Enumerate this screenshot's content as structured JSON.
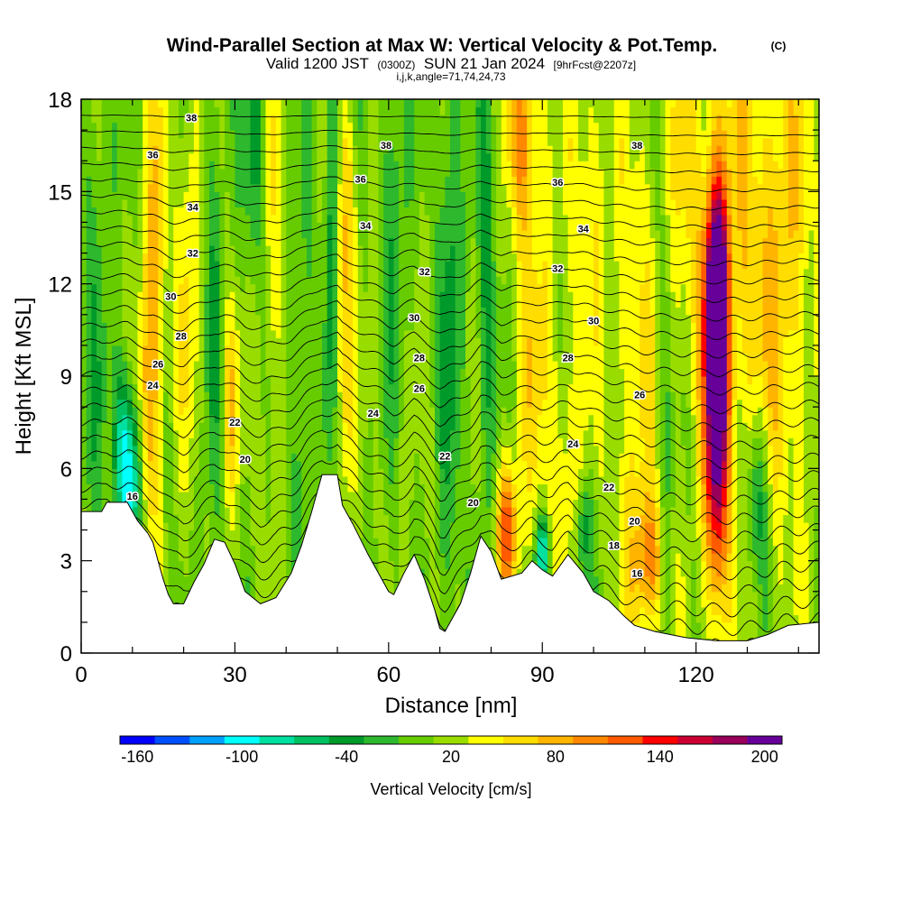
{
  "chart_data": {
    "type": "heatmap",
    "title": "Wind-Parallel Section at Max W: Vertical Velocity & Pot.Temp.",
    "title_mark": "(C)",
    "subtitle": {
      "part1": "Valid 1200 JST",
      "part2": "(0300Z)",
      "part3": "SUN 21 Jan 2024",
      "part4": "[9hrFcst@2207z]"
    },
    "params_line": "i,j,k,angle=71,74,24,73",
    "xlabel": "Distance [nm]",
    "ylabel": "Height [Kft MSL]",
    "xlim": [
      0,
      144
    ],
    "ylim": [
      0,
      18
    ],
    "xticks": [
      "0",
      "30",
      "60",
      "90",
      "120"
    ],
    "yticks": [
      "0",
      "3",
      "6",
      "9",
      "12",
      "15",
      "18"
    ],
    "colorbar": {
      "label": "Vertical Velocity [cm/s]",
      "ticks": [
        "-160",
        "-100",
        "-40",
        "20",
        "80",
        "140",
        "200"
      ],
      "colors": [
        "#0000ff",
        "#0050ff",
        "#00a0ff",
        "#00ffff",
        "#00e0a0",
        "#00c060",
        "#009a2a",
        "#2eb82e",
        "#66cc00",
        "#99dd00",
        "#ffff00",
        "#ffdd00",
        "#ffb400",
        "#ff8800",
        "#ff5a00",
        "#ff0000",
        "#cc0033",
        "#99005a",
        "#660099"
      ]
    },
    "terrain": [
      [
        0,
        4.6
      ],
      [
        4,
        4.6
      ],
      [
        5,
        4.9
      ],
      [
        9,
        4.9
      ],
      [
        11,
        4.3
      ],
      [
        13,
        3.9
      ],
      [
        14,
        3.6
      ],
      [
        15,
        3.0
      ],
      [
        16,
        2.4
      ],
      [
        17,
        1.9
      ],
      [
        18,
        1.6
      ],
      [
        20,
        1.6
      ],
      [
        22,
        2.3
      ],
      [
        24,
        2.9
      ],
      [
        26,
        3.7
      ],
      [
        28,
        3.6
      ],
      [
        30,
        2.9
      ],
      [
        32,
        2.0
      ],
      [
        35,
        1.6
      ],
      [
        38,
        1.8
      ],
      [
        41,
        2.6
      ],
      [
        43,
        3.5
      ],
      [
        45,
        4.6
      ],
      [
        47,
        5.8
      ],
      [
        50,
        5.8
      ],
      [
        51,
        4.8
      ],
      [
        53,
        4.2
      ],
      [
        56,
        3.2
      ],
      [
        58,
        2.6
      ],
      [
        60,
        2.0
      ],
      [
        61,
        1.9
      ],
      [
        63,
        2.6
      ],
      [
        65,
        3.2
      ],
      [
        67,
        2.4
      ],
      [
        69,
        1.4
      ],
      [
        70,
        0.8
      ],
      [
        71,
        0.7
      ],
      [
        72,
        1.0
      ],
      [
        74,
        1.6
      ],
      [
        76,
        2.6
      ],
      [
        78,
        3.8
      ],
      [
        80,
        3.3
      ],
      [
        82,
        2.4
      ],
      [
        86,
        2.6
      ],
      [
        88,
        3.0
      ],
      [
        90,
        2.7
      ],
      [
        92,
        2.5
      ],
      [
        95,
        3.2
      ],
      [
        98,
        2.6
      ],
      [
        100,
        2.0
      ],
      [
        103,
        1.7
      ],
      [
        106,
        1.2
      ],
      [
        108,
        0.9
      ],
      [
        112,
        0.7
      ],
      [
        118,
        0.5
      ],
      [
        124,
        0.4
      ],
      [
        130,
        0.4
      ],
      [
        134,
        0.6
      ],
      [
        138,
        0.9
      ],
      [
        144,
        1.0
      ]
    ],
    "w_features": [
      {
        "x": 124,
        "z": 8.5,
        "sx": 1.6,
        "sz": 4.5,
        "w": 210
      },
      {
        "x": 124,
        "z": 11.5,
        "sx": 1.4,
        "sz": 2.0,
        "w": 120
      },
      {
        "x": 128,
        "z": 12.5,
        "sx": 6.0,
        "sz": 6.0,
        "w": 55
      },
      {
        "x": 138,
        "z": 13.0,
        "sx": 4.0,
        "sz": 7.0,
        "w": 45
      },
      {
        "x": 13,
        "z": 8.0,
        "sx": 1.5,
        "sz": 3.5,
        "w": 90
      },
      {
        "x": 15,
        "z": 14.5,
        "sx": 1.5,
        "sz": 4.0,
        "w": 55
      },
      {
        "x": 21,
        "z": 13.0,
        "sx": 1.6,
        "sz": 5.0,
        "w": 45
      },
      {
        "x": 29,
        "z": 8.0,
        "sx": 1.2,
        "sz": 2.5,
        "w": 60
      },
      {
        "x": 37,
        "z": 12.0,
        "sx": 2.0,
        "sz": 5.0,
        "w": 35
      },
      {
        "x": 51,
        "z": 9.5,
        "sx": 1.5,
        "sz": 3.5,
        "w": 60
      },
      {
        "x": 52,
        "z": 15.0,
        "sx": 1.5,
        "sz": 2.5,
        "w": 40
      },
      {
        "x": 83,
        "z": 4.0,
        "sx": 1.5,
        "sz": 1.5,
        "w": 110
      },
      {
        "x": 88,
        "z": 11.0,
        "sx": 3.0,
        "sz": 6.0,
        "w": 45
      },
      {
        "x": 86,
        "z": 17.0,
        "sx": 2.0,
        "sz": 2.0,
        "w": 70
      },
      {
        "x": 95,
        "z": 6.0,
        "sx": 2.5,
        "sz": 3.0,
        "w": 40
      },
      {
        "x": 108,
        "z": 8.0,
        "sx": 3.0,
        "sz": 7.0,
        "w": 45
      },
      {
        "x": 111,
        "z": 3.0,
        "sx": 2.0,
        "sz": 1.5,
        "w": 80
      },
      {
        "x": 99,
        "z": 15.0,
        "sx": 3.0,
        "sz": 4.0,
        "w": 40
      },
      {
        "x": 117,
        "z": 15.0,
        "sx": 3.0,
        "sz": 5.0,
        "w": 35
      },
      {
        "x": 10,
        "z": 5.5,
        "sx": 1.5,
        "sz": 2.0,
        "w": -110
      },
      {
        "x": 8,
        "z": 7.0,
        "sx": 1.2,
        "sz": 2.0,
        "w": -70
      },
      {
        "x": 90,
        "z": 3.3,
        "sx": 1.0,
        "sz": 0.8,
        "w": -110
      },
      {
        "x": 49,
        "z": 13.0,
        "sx": 1.0,
        "sz": 6.0,
        "w": -60
      },
      {
        "x": 34,
        "z": 16.0,
        "sx": 1.5,
        "sz": 3.0,
        "w": -50
      },
      {
        "x": 72,
        "z": 12.0,
        "sx": 1.5,
        "sz": 8.0,
        "w": -45
      },
      {
        "x": 79,
        "z": 12.0,
        "sx": 1.3,
        "sz": 6.0,
        "w": -45
      },
      {
        "x": 98,
        "z": 4.0,
        "sx": 1.2,
        "sz": 1.2,
        "w": -60
      },
      {
        "x": 132,
        "z": 5.0,
        "sx": 1.5,
        "sz": 2.0,
        "w": -70
      },
      {
        "x": 43,
        "z": 9.0,
        "sx": 1.5,
        "sz": 5.0,
        "w": -35
      },
      {
        "x": 61,
        "z": 15.0,
        "sx": 1.5,
        "sz": 4.0,
        "w": -40
      },
      {
        "x": 26,
        "z": 12.0,
        "sx": 1.5,
        "sz": 6.0,
        "w": -30
      },
      {
        "x": 114,
        "z": 9.0,
        "sx": 1.2,
        "sz": 5.0,
        "w": -35
      },
      {
        "x": 3,
        "z": 12.0,
        "sx": 2.0,
        "sz": 8.0,
        "w": -25
      }
    ],
    "theta_contour_labels": [
      {
        "text": "38",
        "x": 21.5,
        "z": 17.4
      },
      {
        "text": "38",
        "x": 59.5,
        "z": 16.5
      },
      {
        "text": "38",
        "x": 108.5,
        "z": 16.5
      },
      {
        "text": "36",
        "x": 14,
        "z": 16.2
      },
      {
        "text": "36",
        "x": 54.5,
        "z": 15.4
      },
      {
        "text": "36",
        "x": 93,
        "z": 15.3
      },
      {
        "text": "34",
        "x": 21.8,
        "z": 14.5
      },
      {
        "text": "34",
        "x": 55.5,
        "z": 13.9
      },
      {
        "text": "34",
        "x": 98,
        "z": 13.8
      },
      {
        "text": "32",
        "x": 21.8,
        "z": 13.0
      },
      {
        "text": "32",
        "x": 67,
        "z": 12.4
      },
      {
        "text": "32",
        "x": 93,
        "z": 12.5
      },
      {
        "text": "30",
        "x": 17.5,
        "z": 11.6
      },
      {
        "text": "30",
        "x": 65,
        "z": 10.9
      },
      {
        "text": "30",
        "x": 100,
        "z": 10.8
      },
      {
        "text": "28",
        "x": 19.5,
        "z": 10.3
      },
      {
        "text": "28",
        "x": 66,
        "z": 9.6
      },
      {
        "text": "28",
        "x": 95,
        "z": 9.6
      },
      {
        "text": "26",
        "x": 15,
        "z": 9.4
      },
      {
        "text": "26",
        "x": 66,
        "z": 8.6
      },
      {
        "text": "26",
        "x": 109,
        "z": 8.4
      },
      {
        "text": "24",
        "x": 14,
        "z": 8.7
      },
      {
        "text": "24",
        "x": 57,
        "z": 7.8
      },
      {
        "text": "24",
        "x": 96,
        "z": 6.8
      },
      {
        "text": "22",
        "x": 30,
        "z": 7.5
      },
      {
        "text": "22",
        "x": 71,
        "z": 6.4
      },
      {
        "text": "22",
        "x": 103,
        "z": 5.4
      },
      {
        "text": "20",
        "x": 32,
        "z": 6.3
      },
      {
        "text": "20",
        "x": 76.5,
        "z": 4.9
      },
      {
        "text": "20",
        "x": 108,
        "z": 4.3
      },
      {
        "text": "18",
        "x": 104,
        "z": 3.5
      },
      {
        "text": "16",
        "x": 10,
        "z": 5.1
      },
      {
        "text": "16",
        "x": 108.5,
        "z": 2.6
      }
    ]
  }
}
